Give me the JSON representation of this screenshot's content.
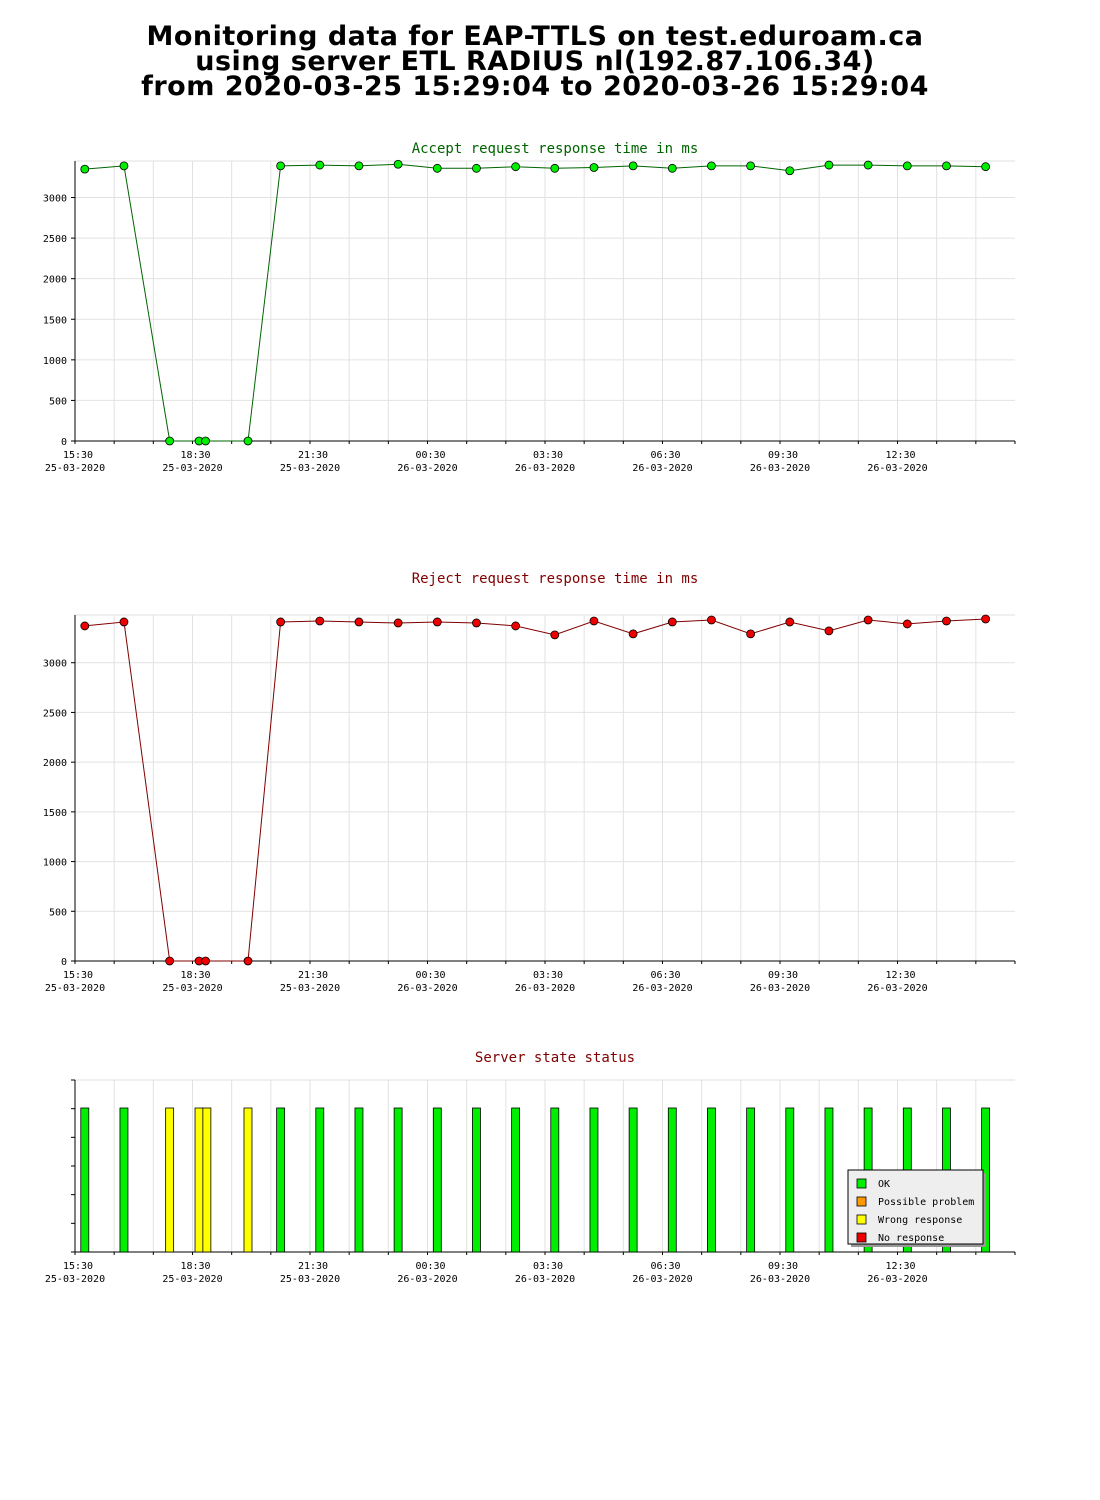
{
  "page": {
    "title_lines": [
      "Monitoring data for EAP-TTLS on test.eduroam.ca",
      "using server ETL RADIUS nl(192.87.106.34)",
      "from 2020-03-25 15:29:04 to 2020-03-26 15:29:04"
    ]
  },
  "x_ticks": [
    {
      "time": "15:30",
      "date": "25-03-2020"
    },
    {
      "time": "18:30",
      "date": "25-03-2020"
    },
    {
      "time": "21:30",
      "date": "25-03-2020"
    },
    {
      "time": "00:30",
      "date": "26-03-2020"
    },
    {
      "time": "03:30",
      "date": "26-03-2020"
    },
    {
      "time": "06:30",
      "date": "26-03-2020"
    },
    {
      "time": "09:30",
      "date": "26-03-2020"
    },
    {
      "time": "12:30",
      "date": "26-03-2020"
    }
  ],
  "chart_data": [
    {
      "type": "line",
      "title": "Accept request response time in ms",
      "title_color": "#006400",
      "xlabel": "",
      "ylabel": "",
      "x_range": [
        "2020-03-25 15:30",
        "2020-03-26 15:30"
      ],
      "ylim": [
        0,
        3450
      ],
      "yticks": [
        0,
        500,
        1000,
        1500,
        2000,
        2500,
        3000
      ],
      "grid": true,
      "series": [
        {
          "line_color": "#006400",
          "marker_color": "#00ee00",
          "points": [
            {
              "x": "2020-03-25 15:45",
              "y": 3350
            },
            {
              "x": "2020-03-25 16:45",
              "y": 3390
            },
            {
              "x": "2020-03-25 17:55",
              "y": 0
            },
            {
              "x": "2020-03-25 18:40",
              "y": 0
            },
            {
              "x": "2020-03-25 18:50",
              "y": 0
            },
            {
              "x": "2020-03-25 19:55",
              "y": 0
            },
            {
              "x": "2020-03-25 20:45",
              "y": 3390
            },
            {
              "x": "2020-03-25 21:45",
              "y": 3400
            },
            {
              "x": "2020-03-25 22:45",
              "y": 3390
            },
            {
              "x": "2020-03-25 23:45",
              "y": 3410
            },
            {
              "x": "2020-03-26 00:45",
              "y": 3360
            },
            {
              "x": "2020-03-26 01:45",
              "y": 3360
            },
            {
              "x": "2020-03-26 02:45",
              "y": 3380
            },
            {
              "x": "2020-03-26 03:45",
              "y": 3360
            },
            {
              "x": "2020-03-26 04:45",
              "y": 3370
            },
            {
              "x": "2020-03-26 05:45",
              "y": 3390
            },
            {
              "x": "2020-03-26 06:45",
              "y": 3360
            },
            {
              "x": "2020-03-26 07:45",
              "y": 3390
            },
            {
              "x": "2020-03-26 08:45",
              "y": 3390
            },
            {
              "x": "2020-03-26 09:45",
              "y": 3330
            },
            {
              "x": "2020-03-26 10:45",
              "y": 3400
            },
            {
              "x": "2020-03-26 11:45",
              "y": 3400
            },
            {
              "x": "2020-03-26 12:45",
              "y": 3390
            },
            {
              "x": "2020-03-26 13:45",
              "y": 3390
            },
            {
              "x": "2020-03-26 14:45",
              "y": 3380
            }
          ]
        }
      ]
    },
    {
      "type": "line",
      "title": "Reject request response time in ms",
      "title_color": "#800000",
      "xlabel": "",
      "ylabel": "",
      "x_range": [
        "2020-03-25 15:30",
        "2020-03-26 15:30"
      ],
      "ylim": [
        0,
        3480
      ],
      "yticks": [
        0,
        500,
        1000,
        1500,
        2000,
        2500,
        3000
      ],
      "grid": true,
      "series": [
        {
          "line_color": "#800000",
          "marker_color": "#ee0000",
          "points": [
            {
              "x": "2020-03-25 15:45",
              "y": 3370
            },
            {
              "x": "2020-03-25 16:45",
              "y": 3410
            },
            {
              "x": "2020-03-25 17:55",
              "y": 0
            },
            {
              "x": "2020-03-25 18:40",
              "y": 0
            },
            {
              "x": "2020-03-25 18:50",
              "y": 0
            },
            {
              "x": "2020-03-25 19:55",
              "y": 0
            },
            {
              "x": "2020-03-25 20:45",
              "y": 3410
            },
            {
              "x": "2020-03-25 21:45",
              "y": 3420
            },
            {
              "x": "2020-03-25 22:45",
              "y": 3410
            },
            {
              "x": "2020-03-25 23:45",
              "y": 3400
            },
            {
              "x": "2020-03-26 00:45",
              "y": 3410
            },
            {
              "x": "2020-03-26 01:45",
              "y": 3400
            },
            {
              "x": "2020-03-26 02:45",
              "y": 3370
            },
            {
              "x": "2020-03-26 03:45",
              "y": 3280
            },
            {
              "x": "2020-03-26 04:45",
              "y": 3420
            },
            {
              "x": "2020-03-26 05:45",
              "y": 3290
            },
            {
              "x": "2020-03-26 06:45",
              "y": 3410
            },
            {
              "x": "2020-03-26 07:45",
              "y": 3430
            },
            {
              "x": "2020-03-26 08:45",
              "y": 3290
            },
            {
              "x": "2020-03-26 09:45",
              "y": 3410
            },
            {
              "x": "2020-03-26 10:45",
              "y": 3320
            },
            {
              "x": "2020-03-26 11:45",
              "y": 3430
            },
            {
              "x": "2020-03-26 12:45",
              "y": 3390
            },
            {
              "x": "2020-03-26 13:45",
              "y": 3420
            },
            {
              "x": "2020-03-26 14:45",
              "y": 3440
            }
          ]
        }
      ]
    },
    {
      "type": "bar",
      "title": "Server state status",
      "title_color": "#800000",
      "xlabel": "",
      "ylabel": "",
      "x_range": [
        "2020-03-25 15:30",
        "2020-03-26 15:30"
      ],
      "legend": {
        "placement": "bottom-right",
        "items": [
          {
            "label": "OK",
            "color": "#00ee00"
          },
          {
            "label": "Possible problem",
            "color": "#ff9900"
          },
          {
            "label": "Wrong response",
            "color": "#ffff00"
          },
          {
            "label": "No response",
            "color": "#ee0000"
          }
        ]
      },
      "bars": [
        {
          "x": "2020-03-25 15:45",
          "status": "OK"
        },
        {
          "x": "2020-03-25 16:45",
          "status": "OK"
        },
        {
          "x": "2020-03-25 17:55",
          "status": "Wrong response"
        },
        {
          "x": "2020-03-25 18:40",
          "status": "Wrong response"
        },
        {
          "x": "2020-03-25 18:52",
          "status": "Wrong response"
        },
        {
          "x": "2020-03-25 19:55",
          "status": "Wrong response"
        },
        {
          "x": "2020-03-25 20:45",
          "status": "OK"
        },
        {
          "x": "2020-03-25 21:45",
          "status": "OK"
        },
        {
          "x": "2020-03-25 22:45",
          "status": "OK"
        },
        {
          "x": "2020-03-25 23:45",
          "status": "OK"
        },
        {
          "x": "2020-03-26 00:45",
          "status": "OK"
        },
        {
          "x": "2020-03-26 01:45",
          "status": "OK"
        },
        {
          "x": "2020-03-26 02:45",
          "status": "OK"
        },
        {
          "x": "2020-03-26 03:45",
          "status": "OK"
        },
        {
          "x": "2020-03-26 04:45",
          "status": "OK"
        },
        {
          "x": "2020-03-26 05:45",
          "status": "OK"
        },
        {
          "x": "2020-03-26 06:45",
          "status": "OK"
        },
        {
          "x": "2020-03-26 07:45",
          "status": "OK"
        },
        {
          "x": "2020-03-26 08:45",
          "status": "OK"
        },
        {
          "x": "2020-03-26 09:45",
          "status": "OK"
        },
        {
          "x": "2020-03-26 10:45",
          "status": "OK"
        },
        {
          "x": "2020-03-26 11:45",
          "status": "OK"
        },
        {
          "x": "2020-03-26 12:45",
          "status": "OK"
        },
        {
          "x": "2020-03-26 13:45",
          "status": "OK"
        },
        {
          "x": "2020-03-26 14:45",
          "status": "OK"
        }
      ]
    }
  ]
}
